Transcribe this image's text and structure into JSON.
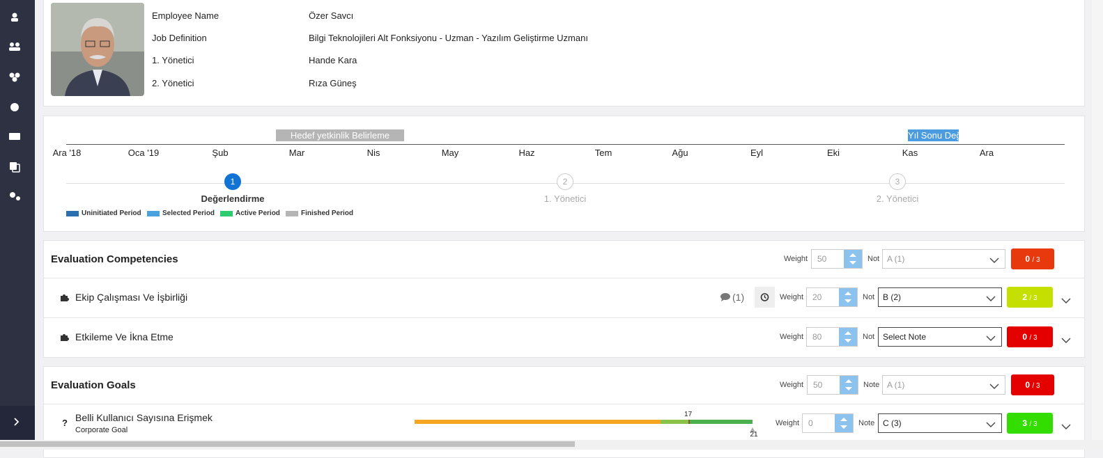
{
  "employee": {
    "fields": [
      {
        "label": "Employee Name",
        "value": "Özer Savcı"
      },
      {
        "label": "Job Definition",
        "value": "Bilgi Teknolojileri Alt Fonksiyonu - Uzman - Yazılım Geliştirme Uzmanı"
      },
      {
        "label": "1. Yönetici",
        "value": "Hande Kara"
      },
      {
        "label": "2. Yönetici",
        "value": "Rıza Güneş"
      }
    ]
  },
  "timeline": {
    "months": [
      "Ara '18",
      "Oca '19",
      "Şub",
      "Mar",
      "Nis",
      "May",
      "Haz",
      "Tem",
      "Ağu",
      "Eyl",
      "Eki",
      "Kas",
      "Ara"
    ],
    "periods": [
      {
        "label": "Hedef yetkinlik Belirleme",
        "color": "#b5b5b5"
      },
      {
        "label": "Yıl Sonu Değ",
        "color": "#4a9be0"
      }
    ],
    "steps": [
      {
        "number": "1",
        "label": "Değerlendirme",
        "active": true
      },
      {
        "number": "2",
        "label": "1. Yönetici",
        "active": false
      },
      {
        "number": "3",
        "label": "2. Yönetici",
        "active": false
      }
    ],
    "legend": [
      {
        "label": "Uninitiated Period",
        "color": "#2a6fb0"
      },
      {
        "label": "Selected Period",
        "color": "#4aa3df"
      },
      {
        "label": "Active Period",
        "color": "#2ecc71"
      },
      {
        "label": "Finished Period",
        "color": "#b5b5b5"
      }
    ]
  },
  "competencies": {
    "title": "Evaluation Competencies",
    "weight_label": "Weight",
    "weight": 50,
    "note_label": "Not",
    "note": "A (1)",
    "score": "0",
    "out_of": "/ 3",
    "score_color": "#e8380d",
    "items": [
      {
        "name": "Ekip Çalışması Ve İşbirliği",
        "comments": "(1)",
        "weight_label": "Weight",
        "weight": 20,
        "note_label": "Not",
        "note": "B (2)",
        "score": "2",
        "out_of": "/ 3",
        "score_color": "#c5e000"
      },
      {
        "name": "Etkileme Ve İkna Etme",
        "weight_label": "Weight",
        "weight": 80,
        "note_label": "Not",
        "note": "Select Note",
        "score": "0",
        "out_of": "/ 3",
        "score_color": "#e50000"
      }
    ]
  },
  "goals": {
    "title": "Evaluation Goals",
    "weight_label": "Weight",
    "weight": 50,
    "note_label": "Note",
    "note": "A (1)",
    "score": "0",
    "out_of": "/ 3",
    "score_color": "#e50000",
    "items": [
      {
        "name": "Belli Kullanıcı Sayısına Erişmek",
        "type": "Corporate Goal",
        "current": 17,
        "target": 21,
        "weight_label": "Weight",
        "weight": 0,
        "note_label": "Note",
        "note": "C (3)",
        "score": "3",
        "out_of": "/ 3",
        "score_color": "#33dd00"
      }
    ]
  }
}
